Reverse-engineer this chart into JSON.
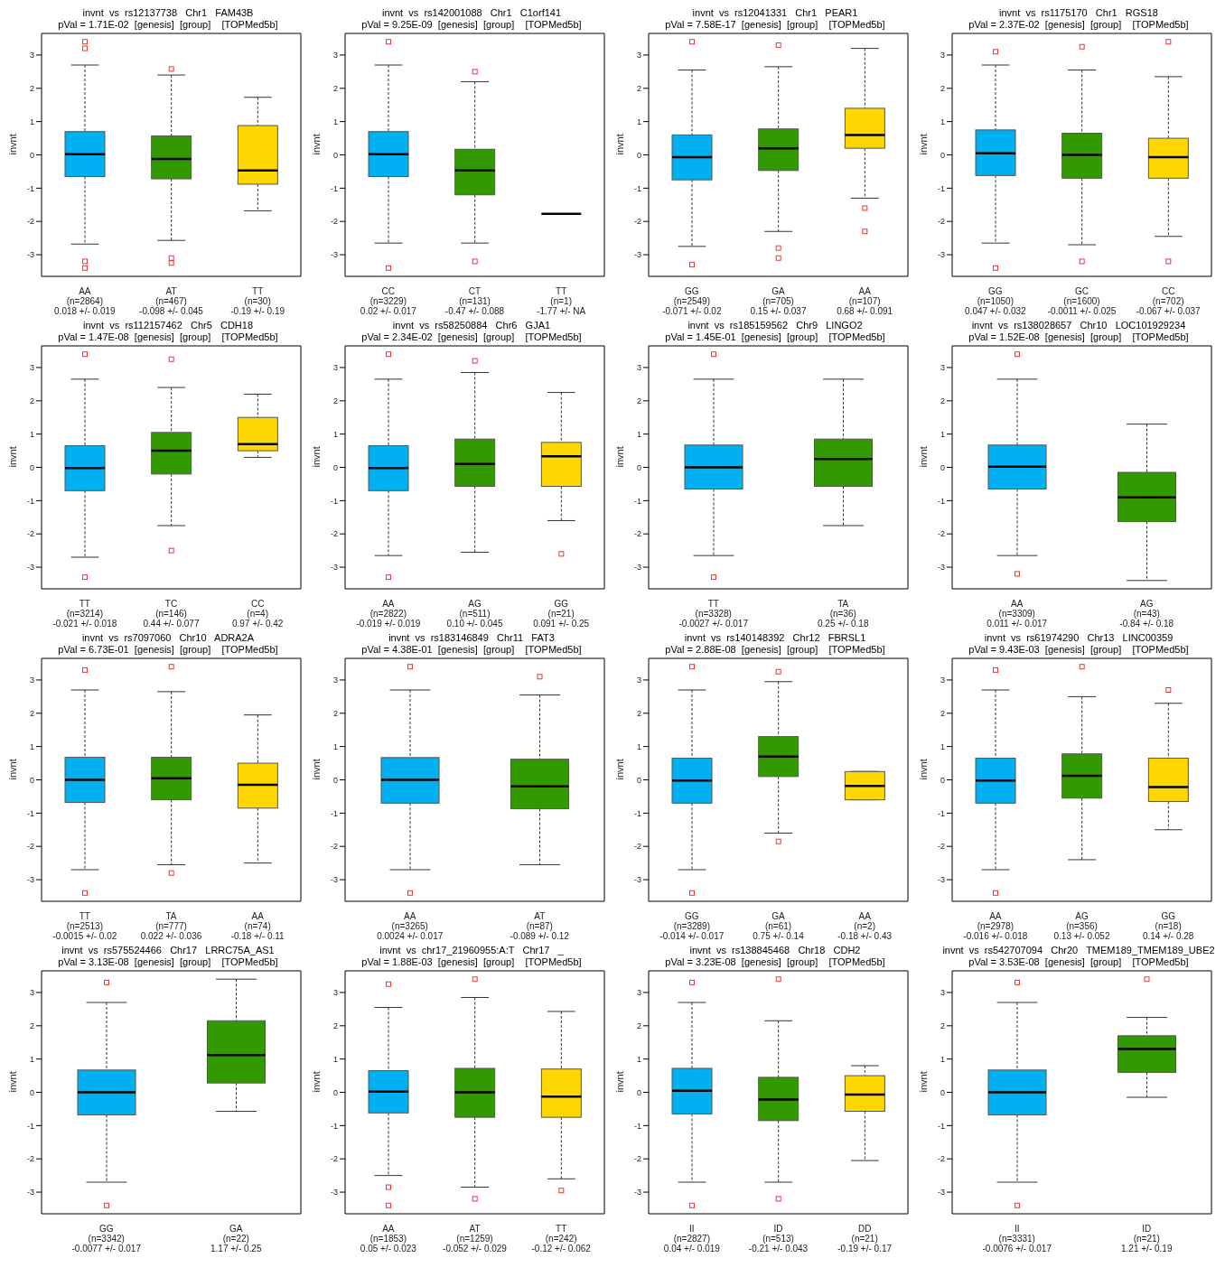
{
  "chart_data": [
    {
      "type": "box",
      "title": "invnt  vs  rs12137738   Chr1   FAM43B",
      "subtitle": "pVal = 1.71E-02  [genesis]  [group]    [TOPMed5b]",
      "ylabel": "invnt",
      "ylim": [
        -3.65,
        3.65
      ],
      "yticks": [
        -3,
        -2,
        -1,
        0,
        1,
        2,
        3
      ],
      "categories": [
        "AA\n(n=2864)\n0.018 +/- 0.019",
        "AT\n(n=467)\n-0.098 +/- 0.045",
        "TT\n(n=30)\n-0.19 +/- 0.19"
      ],
      "colors": [
        "#00b0f0",
        "#339900",
        "#ffd700"
      ],
      "boxes": [
        {
          "low": -2.68,
          "q1": -0.65,
          "median": 0.02,
          "q3": 0.7,
          "high": 2.7,
          "outliers": [
            3.4,
            3.2,
            -3.2,
            -3.4
          ]
        },
        {
          "low": -2.57,
          "q1": -0.72,
          "median": -0.12,
          "q3": 0.57,
          "high": 2.4,
          "outliers": [
            2.58,
            -3.1,
            -3.25
          ]
        },
        {
          "low": -1.68,
          "q1": -0.88,
          "median": -0.47,
          "q3": 0.88,
          "high": 1.73
        }
      ]
    },
    {
      "type": "box",
      "title": "invnt  vs  rs142001088   Chr1   C1orf141",
      "subtitle": "pVal = 9.25E-09  [genesis]  [group]    [TOPMed5b]",
      "ylabel": "invnt",
      "ylim": [
        -3.65,
        3.65
      ],
      "yticks": [
        -3,
        -2,
        -1,
        0,
        1,
        2,
        3
      ],
      "categories": [
        "CC\n(n=3229)\n0.02 +/- 0.017",
        "CT\n(n=131)\n-0.47 +/- 0.088",
        "TT\n(n=1)\n-1.77 +/- NA"
      ],
      "colors": [
        "#00b0f0",
        "#339900",
        "#000000"
      ],
      "boxes": [
        {
          "low": -2.65,
          "q1": -0.65,
          "median": 0.02,
          "q3": 0.7,
          "high": 2.7,
          "outliers": [
            3.4,
            -3.4
          ]
        },
        {
          "low": -2.65,
          "q1": -1.2,
          "median": -0.47,
          "q3": 0.17,
          "high": 2.2,
          "outliers": [
            2.5,
            -3.2
          ]
        },
        {
          "low": -1.77,
          "q1": -1.77,
          "median": -1.77,
          "q3": -1.77,
          "high": -1.77
        }
      ]
    },
    {
      "type": "box",
      "title": "invnt  vs  rs12041331   Chr1   PEAR1",
      "subtitle": "pVal = 7.58E-17  [genesis]  [group]    [TOPMed5b]",
      "ylabel": "invnt",
      "ylim": [
        -3.65,
        3.65
      ],
      "yticks": [
        -3,
        -2,
        -1,
        0,
        1,
        2,
        3
      ],
      "categories": [
        "GG\n(n=2549)\n-0.071 +/- 0.02",
        "GA\n(n=705)\n0.15 +/- 0.037",
        "AA\n(n=107)\n0.68 +/- 0.091"
      ],
      "colors": [
        "#00b0f0",
        "#339900",
        "#ffd700"
      ],
      "boxes": [
        {
          "low": -2.75,
          "q1": -0.75,
          "median": -0.07,
          "q3": 0.6,
          "high": 2.55,
          "outliers": [
            3.4,
            -3.3
          ]
        },
        {
          "low": -2.3,
          "q1": -0.47,
          "median": 0.2,
          "q3": 0.78,
          "high": 2.65,
          "outliers": [
            3.3,
            -2.8,
            -3.1
          ]
        },
        {
          "low": -1.3,
          "q1": 0.2,
          "median": 0.6,
          "q3": 1.4,
          "high": 3.2,
          "outliers": [
            -1.6,
            -2.3
          ]
        }
      ]
    },
    {
      "type": "box",
      "title": "invnt  vs  rs1175170   Chr1   RGS18",
      "subtitle": "pVal = 2.37E-02  [genesis]  [group]    [TOPMed5b]",
      "ylabel": "invnt",
      "ylim": [
        -3.65,
        3.65
      ],
      "yticks": [
        -3,
        -2,
        -1,
        0,
        1,
        2,
        3
      ],
      "categories": [
        "GG\n(n=1050)\n0.047 +/- 0.032",
        "GC\n(n=1600)\n-0.0011 +/- 0.025",
        "CC\n(n=702)\n-0.067 +/- 0.037"
      ],
      "colors": [
        "#00b0f0",
        "#339900",
        "#ffd700"
      ],
      "boxes": [
        {
          "low": -2.65,
          "q1": -0.62,
          "median": 0.05,
          "q3": 0.75,
          "high": 2.7,
          "outliers": [
            3.1,
            -3.4
          ]
        },
        {
          "low": -2.7,
          "q1": -0.7,
          "median": 0,
          "q3": 0.65,
          "high": 2.55,
          "outliers": [
            3.25,
            -3.2
          ]
        },
        {
          "low": -2.45,
          "q1": -0.7,
          "median": -0.07,
          "q3": 0.5,
          "high": 2.35,
          "outliers": [
            3.4,
            -3.2
          ]
        }
      ]
    },
    {
      "type": "box",
      "title": "invnt  vs  rs112157462   Chr5   CDH18",
      "subtitle": "pVal = 1.47E-08  [genesis]  [group]    [TOPMed5b]",
      "ylabel": "invnt",
      "ylim": [
        -3.65,
        3.65
      ],
      "yticks": [
        -3,
        -2,
        -1,
        0,
        1,
        2,
        3
      ],
      "categories": [
        "TT\n(n=3214)\n-0.021 +/- 0.018",
        "TC\n(n=146)\n0.44 +/- 0.077",
        "CC\n(n=4)\n0.97 +/- 0.42"
      ],
      "colors": [
        "#00b0f0",
        "#339900",
        "#ffd700"
      ],
      "boxes": [
        {
          "low": -2.7,
          "q1": -0.7,
          "median": -0.02,
          "q3": 0.65,
          "high": 2.65,
          "outliers": [
            3.4,
            -3.3
          ]
        },
        {
          "low": -1.75,
          "q1": -0.2,
          "median": 0.5,
          "q3": 1.05,
          "high": 2.4,
          "outliers": [
            3.25,
            -2.5
          ]
        },
        {
          "low": 0.3,
          "q1": 0.5,
          "median": 0.7,
          "q3": 1.5,
          "high": 2.2
        }
      ]
    },
    {
      "type": "box",
      "title": "invnt  vs  rs58250884   Chr6   GJA1",
      "subtitle": "pVal = 2.34E-02  [genesis]  [group]    [TOPMed5b]",
      "ylabel": "invnt",
      "ylim": [
        -3.65,
        3.65
      ],
      "yticks": [
        -3,
        -2,
        -1,
        0,
        1,
        2,
        3
      ],
      "categories": [
        "AA\n(n=2822)\n-0.019 +/- 0.019",
        "AG\n(n=511)\n0.10 +/- 0.045",
        "GG\n(n=21)\n0.091 +/- 0.25"
      ],
      "colors": [
        "#00b0f0",
        "#339900",
        "#ffd700"
      ],
      "boxes": [
        {
          "low": -2.65,
          "q1": -0.7,
          "median": -0.02,
          "q3": 0.65,
          "high": 2.65,
          "outliers": [
            3.4,
            -3.3
          ]
        },
        {
          "low": -2.55,
          "q1": -0.57,
          "median": 0.1,
          "q3": 0.85,
          "high": 2.85,
          "outliers": [
            3.2
          ]
        },
        {
          "low": -1.6,
          "q1": -0.57,
          "median": 0.33,
          "q3": 0.75,
          "high": 2.25,
          "outliers": [
            -2.6
          ]
        }
      ]
    },
    {
      "type": "box",
      "title": "invnt  vs  rs185159562   Chr9   LINGO2",
      "subtitle": "pVal = 1.45E-01  [genesis]  [group]    [TOPMed5b]",
      "ylabel": "invnt",
      "ylim": [
        -3.65,
        3.65
      ],
      "yticks": [
        -3,
        -2,
        -1,
        0,
        1,
        2,
        3
      ],
      "categories": [
        "TT\n(n=3328)\n-0.0027 +/- 0.017",
        "TA\n(n=36)\n0.25 +/- 0.18"
      ],
      "colors": [
        "#00b0f0",
        "#339900"
      ],
      "boxes": [
        {
          "low": -2.65,
          "q1": -0.65,
          "median": 0,
          "q3": 0.67,
          "high": 2.65,
          "outliers": [
            3.4,
            -3.3
          ]
        },
        {
          "low": -1.75,
          "q1": -0.57,
          "median": 0.25,
          "q3": 0.85,
          "high": 2.65
        }
      ]
    },
    {
      "type": "box",
      "title": "invnt  vs  rs138028657   Chr10   LOC101929234",
      "subtitle": "pVal = 1.52E-08  [genesis]  [group]    [TOPMed5b]",
      "ylabel": "invnt",
      "ylim": [
        -3.65,
        3.65
      ],
      "yticks": [
        -3,
        -2,
        -1,
        0,
        1,
        2,
        3
      ],
      "categories": [
        "AA\n(n=3309)\n0.011 +/- 0.017",
        "AG\n(n=43)\n-0.84 +/- 0.18"
      ],
      "colors": [
        "#00b0f0",
        "#339900"
      ],
      "boxes": [
        {
          "low": -2.65,
          "q1": -0.65,
          "median": 0.02,
          "q3": 0.67,
          "high": 2.65,
          "outliers": [
            3.4,
            -3.2
          ]
        },
        {
          "low": -3.4,
          "q1": -1.63,
          "median": -0.9,
          "q3": -0.15,
          "high": 1.3
        }
      ]
    },
    {
      "type": "box",
      "title": "invnt  vs  rs7097060   Chr10   ADRA2A",
      "subtitle": "pVal = 6.73E-01  [genesis]  [group]    [TOPMed5b]",
      "ylabel": "invnt",
      "ylim": [
        -3.65,
        3.65
      ],
      "yticks": [
        -3,
        -2,
        -1,
        0,
        1,
        2,
        3
      ],
      "categories": [
        "TT\n(n=2513)\n-0.0015 +/- 0.02",
        "TA\n(n=777)\n0.022 +/- 0.036",
        "AA\n(n=74)\n-0.18 +/- 0.11"
      ],
      "colors": [
        "#00b0f0",
        "#339900",
        "#ffd700"
      ],
      "boxes": [
        {
          "low": -2.7,
          "q1": -0.68,
          "median": 0,
          "q3": 0.68,
          "high": 2.7,
          "outliers": [
            3.3,
            -3.4
          ]
        },
        {
          "low": -2.55,
          "q1": -0.6,
          "median": 0.05,
          "q3": 0.68,
          "high": 2.65,
          "outliers": [
            3.4,
            -2.8
          ]
        },
        {
          "low": -2.5,
          "q1": -0.85,
          "median": -0.15,
          "q3": 0.5,
          "high": 1.95
        }
      ]
    },
    {
      "type": "box",
      "title": "invnt  vs  rs183146849   Chr11   FAT3",
      "subtitle": "pVal = 4.38E-01  [genesis]  [group]    [TOPMed5b]",
      "ylabel": "invnt",
      "ylim": [
        -3.65,
        3.65
      ],
      "yticks": [
        -3,
        -2,
        -1,
        0,
        1,
        2,
        3
      ],
      "categories": [
        "AA\n(n=3265)\n0.0024 +/- 0.017",
        "AT\n(n=87)\n-0.089 +/- 0.12"
      ],
      "colors": [
        "#00b0f0",
        "#339900"
      ],
      "boxes": [
        {
          "low": -2.7,
          "q1": -0.7,
          "median": 0,
          "q3": 0.67,
          "high": 2.7,
          "outliers": [
            3.4,
            -3.4
          ]
        },
        {
          "low": -2.55,
          "q1": -0.87,
          "median": -0.2,
          "q3": 0.62,
          "high": 2.55,
          "outliers": [
            3.1
          ]
        }
      ]
    },
    {
      "type": "box",
      "title": "invnt  vs  rs140148392   Chr12   FBRSL1",
      "subtitle": "pVal = 2.88E-08  [genesis]  [group]    [TOPMed5b]",
      "ylabel": "invnt",
      "ylim": [
        -3.65,
        3.65
      ],
      "yticks": [
        -3,
        -2,
        -1,
        0,
        1,
        2,
        3
      ],
      "categories": [
        "GG\n(n=3289)\n-0.014 +/- 0.017",
        "GA\n(n=61)\n0.75 +/- 0.14",
        "AA\n(n=2)\n-0.18 +/- 0.43"
      ],
      "colors": [
        "#00b0f0",
        "#339900",
        "#ffd700"
      ],
      "boxes": [
        {
          "low": -2.7,
          "q1": -0.7,
          "median": -0.02,
          "q3": 0.65,
          "high": 2.7,
          "outliers": [
            3.4,
            -3.4
          ]
        },
        {
          "low": -1.6,
          "q1": 0.1,
          "median": 0.7,
          "q3": 1.3,
          "high": 2.95,
          "outliers": [
            3.25,
            -1.85
          ]
        },
        {
          "low": -0.6,
          "q1": -0.6,
          "median": -0.18,
          "q3": 0.25,
          "high": 0.25
        }
      ]
    },
    {
      "type": "box",
      "title": "invnt  vs  rs61974290   Chr13   LINC00359",
      "subtitle": "pVal = 9.43E-03  [genesis]  [group]    [TOPMed5b]",
      "ylabel": "invnt",
      "ylim": [
        -3.65,
        3.65
      ],
      "yticks": [
        -3,
        -2,
        -1,
        0,
        1,
        2,
        3
      ],
      "categories": [
        "AA\n(n=2978)\n-0.016 +/- 0.018",
        "AG\n(n=356)\n0.13 +/- 0.052",
        "GG\n(n=18)\n0.14 +/- 0.28"
      ],
      "colors": [
        "#00b0f0",
        "#339900",
        "#ffd700"
      ],
      "boxes": [
        {
          "low": -2.7,
          "q1": -0.7,
          "median": -0.02,
          "q3": 0.65,
          "high": 2.7,
          "outliers": [
            3.3,
            -3.4
          ]
        },
        {
          "low": -2.4,
          "q1": -0.55,
          "median": 0.12,
          "q3": 0.78,
          "high": 2.5,
          "outliers": [
            3.4
          ]
        },
        {
          "low": -1.5,
          "q1": -0.65,
          "median": -0.22,
          "q3": 0.65,
          "high": 2.3,
          "outliers": [
            2.7
          ]
        }
      ]
    },
    {
      "type": "box",
      "title": "invnt  vs  rs575524466   Chr17   LRRC75A_AS1",
      "subtitle": "pVal = 3.13E-08  [genesis]  [group]    [TOPMed5b]",
      "ylabel": "invnt",
      "ylim": [
        -3.65,
        3.65
      ],
      "yticks": [
        -3,
        -2,
        -1,
        0,
        1,
        2,
        3
      ],
      "categories": [
        "GG\n(n=3342)\n-0.0077 +/- 0.017",
        "GA\n(n=22)\n1.17 +/- 0.25"
      ],
      "colors": [
        "#00b0f0",
        "#339900"
      ],
      "boxes": [
        {
          "low": -2.7,
          "q1": -0.68,
          "median": 0,
          "q3": 0.67,
          "high": 2.7,
          "outliers": [
            3.3,
            -3.4
          ]
        },
        {
          "low": -0.57,
          "q1": 0.28,
          "median": 1.12,
          "q3": 2.15,
          "high": 3.4
        }
      ]
    },
    {
      "type": "box",
      "title": "invnt  vs  chr17_21960955:A:T   Chr17   _",
      "subtitle": "pVal = 1.88E-03  [genesis]  [group]    [TOPMed5b]",
      "ylabel": "invnt",
      "ylim": [
        -3.65,
        3.65
      ],
      "yticks": [
        -3,
        -2,
        -1,
        0,
        1,
        2,
        3
      ],
      "categories": [
        "AA\n(n=1853)\n0.05 +/- 0.023",
        "AT\n(n=1259)\n-0.052 +/- 0.029",
        "TT\n(n=242)\n-0.12 +/- 0.062"
      ],
      "colors": [
        "#00b0f0",
        "#339900",
        "#ffd700"
      ],
      "boxes": [
        {
          "low": -2.5,
          "q1": -0.62,
          "median": 0.02,
          "q3": 0.65,
          "high": 2.55,
          "outliers": [
            3.25,
            -2.85,
            -3.4
          ]
        },
        {
          "low": -2.85,
          "q1": -0.75,
          "median": 0,
          "q3": 0.72,
          "high": 2.85,
          "outliers": [
            3.4,
            -3.2
          ]
        },
        {
          "low": -2.6,
          "q1": -0.75,
          "median": -0.13,
          "q3": 0.7,
          "high": 2.43,
          "outliers": [
            -2.95
          ]
        }
      ]
    },
    {
      "type": "box",
      "title": "invnt  vs  rs138845468   Chr18   CDH2",
      "subtitle": "pVal = 3.23E-08  [genesis]  [group]    [TOPMed5b]",
      "ylabel": "invnt",
      "ylim": [
        -3.65,
        3.65
      ],
      "yticks": [
        -3,
        -2,
        -1,
        0,
        1,
        2,
        3
      ],
      "categories": [
        "II\n(n=2827)\n0.04 +/- 0.019",
        "ID\n(n=513)\n-0.21 +/- 0.043",
        "DD\n(n=21)\n-0.19 +/- 0.17"
      ],
      "colors": [
        "#00b0f0",
        "#339900",
        "#ffd700"
      ],
      "boxes": [
        {
          "low": -2.7,
          "q1": -0.65,
          "median": 0.05,
          "q3": 0.72,
          "high": 2.7,
          "outliers": [
            3.3,
            -3.4
          ]
        },
        {
          "low": -2.7,
          "q1": -0.85,
          "median": -0.22,
          "q3": 0.45,
          "high": 2.15,
          "outliers": [
            3.4,
            -3.2
          ]
        },
        {
          "low": -2.05,
          "q1": -0.57,
          "median": -0.07,
          "q3": 0.5,
          "high": 0.8
        }
      ]
    },
    {
      "type": "box",
      "title": "invnt  vs  rs542707094   Chr20   TMEM189_TMEM189_UBE2",
      "subtitle": "pVal = 3.53E-08  [genesis]  [group]    [TOPMed5b]",
      "ylabel": "invnt",
      "ylim": [
        -3.65,
        3.65
      ],
      "yticks": [
        -3,
        -2,
        -1,
        0,
        1,
        2,
        3
      ],
      "categories": [
        "II\n(n=3331)\n-0.0076 +/- 0.017",
        "ID\n(n=21)\n1.21 +/- 0.19"
      ],
      "colors": [
        "#00b0f0",
        "#339900"
      ],
      "boxes": [
        {
          "low": -2.7,
          "q1": -0.68,
          "median": 0,
          "q3": 0.67,
          "high": 2.7,
          "outliers": [
            3.3,
            -3.4
          ]
        },
        {
          "low": -0.15,
          "q1": 0.6,
          "median": 1.3,
          "q3": 1.7,
          "high": 2.25,
          "outliers": [
            3.4
          ]
        }
      ]
    }
  ]
}
